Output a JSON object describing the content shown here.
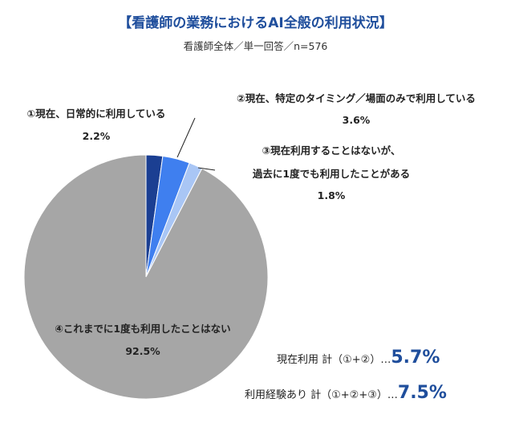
{
  "header": {
    "title": "【看護師の業務におけるAI全般の利用状況】",
    "subtitle": "看護師全体／単一回答／n=576"
  },
  "chart_data": {
    "type": "pie",
    "title": "【看護師の業務におけるAI全般の利用状況】",
    "subtitle": "看護師全体／単一回答／n=576",
    "series": [
      {
        "labels": [
          "①現在、日常的に利用している",
          "②現在、特定のタイミング／場面のみで利用している",
          "③現在利用することはないが、過去に1度でも利用したことがある",
          "④これまでに1度も利用したことはない"
        ],
        "values": [
          2.2,
          3.6,
          1.8,
          92.5
        ],
        "colors": [
          "#1b3f92",
          "#3f7fef",
          "#a9c6f5",
          "#a6a6a6"
        ]
      }
    ]
  },
  "labels": {
    "s1_line1": "①現在、日常的に利用している",
    "s1_pct": "2.2%",
    "s2_line1": "②現在、特定のタイミング／場面のみで利用している",
    "s2_pct": "3.6%",
    "s3_line1": "③現在利用することはないが、",
    "s3_line2": "過去に1度でも利用したことがある",
    "s3_pct": "1.8%",
    "s4_line1": "④これまでに1度も利用したことはない",
    "s4_pct": "92.5%"
  },
  "summary": {
    "current_label": "現在利用 計（①+②）…",
    "current_value": "5.7%",
    "experience_label": "利用経験あり 計（①+②+③）…",
    "experience_value": "7.5%"
  }
}
